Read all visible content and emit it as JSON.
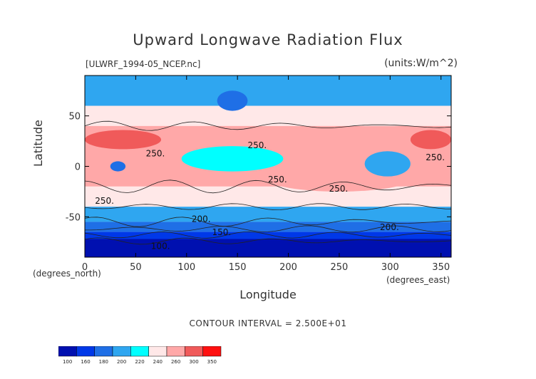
{
  "chart_data": {
    "type": "heatmap",
    "title": "Upward Longwave Radiation Flux",
    "subtitle_left": "[ULWRF_1994-05_NCEP.nc]",
    "subtitle_right": "(units:W/m^2)",
    "xlabel": "Longitude",
    "ylabel": "Latitude",
    "x_unit_label": "(degrees_east)",
    "y_unit_label": "(degrees_north)",
    "xlim": [
      0,
      360
    ],
    "ylim": [
      -90,
      90
    ],
    "x_ticks": [
      0,
      50,
      100,
      150,
      200,
      250,
      300,
      350
    ],
    "y_ticks": [
      -50,
      0,
      50
    ],
    "contour_interval_text": "CONTOUR INTERVAL = 2.500E+01",
    "contour_labels": [
      "250.",
      "250.",
      "250.",
      "250.",
      "250.",
      "250.",
      "200.",
      "200.",
      "150.",
      "100."
    ],
    "colorbar_levels": [
      "100",
      "160",
      "180",
      "200",
      "220",
      "240",
      "260",
      "300",
      "350"
    ],
    "colorbar_colors": [
      "#0010b0",
      "#0038e8",
      "#1f6fe6",
      "#2fa6f0",
      "#00ffff",
      "#ffe8e8",
      "#ffa8a8",
      "#f05a5a",
      "#ff1010"
    ],
    "bands": [
      {
        "lat": [
          60,
          90
        ],
        "value": 215
      },
      {
        "lat": [
          40,
          60
        ],
        "value": 245
      },
      {
        "lat": [
          -20,
          40
        ],
        "value": 270
      },
      {
        "lat": [
          -40,
          -20
        ],
        "value": 245
      },
      {
        "lat": [
          -55,
          -40
        ],
        "value": 215
      },
      {
        "lat": [
          -65,
          -55
        ],
        "value": 195
      },
      {
        "lat": [
          -72,
          -65
        ],
        "value": 175
      },
      {
        "lat": [
          -90,
          -72
        ],
        "value": 130
      }
    ],
    "features": [
      {
        "lon": [
          0,
          75
        ],
        "lat": [
          17,
          36
        ],
        "value": 310
      },
      {
        "lon": [
          320,
          360
        ],
        "lat": [
          17,
          36
        ],
        "value": 310
      },
      {
        "lon": [
          0,
          40
        ],
        "lat": [
          -20,
          0
        ],
        "value": 270
      },
      {
        "lon": [
          180,
          320
        ],
        "lat": [
          -25,
          0
        ],
        "value": 270
      },
      {
        "lon": [
          95,
          195
        ],
        "lat": [
          -5,
          20
        ],
        "value": 230
      },
      {
        "lon": [
          275,
          320
        ],
        "lat": [
          -10,
          15
        ],
        "value": 210
      },
      {
        "lon": [
          130,
          160
        ],
        "lat": [
          55,
          75
        ],
        "value": 190
      },
      {
        "lon": [
          25,
          40
        ],
        "lat": [
          -5,
          5
        ],
        "value": 190
      }
    ]
  }
}
